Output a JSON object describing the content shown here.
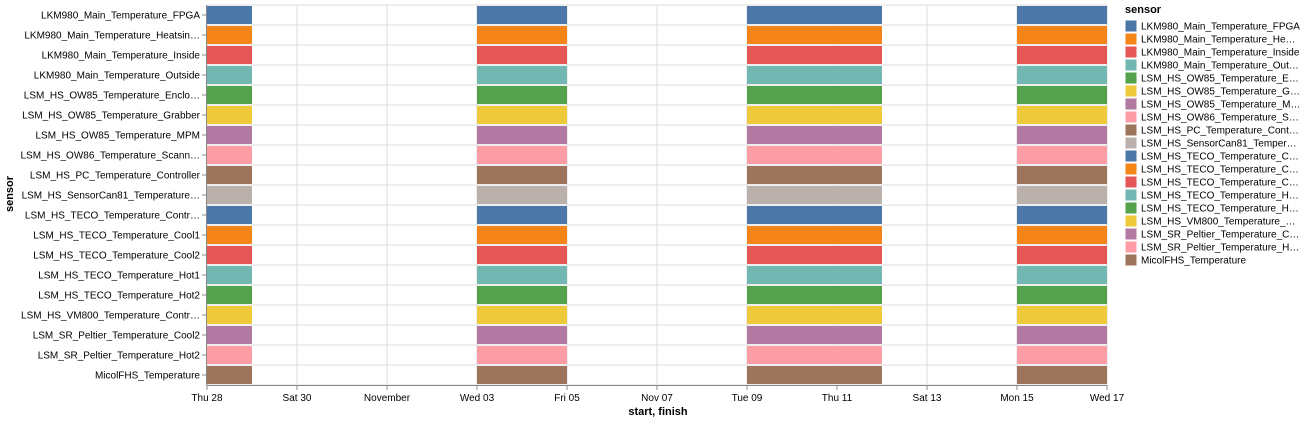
{
  "chart_data": {
    "type": "gantt",
    "x_axis_label": "start, finish",
    "y_axis_label": "sensor",
    "legend_title": "sensor",
    "x_ticks": [
      "Thu 28",
      "Sat 30",
      "November",
      "Wed 03",
      "Fri 05",
      "Nov 07",
      "Tue 09",
      "Thu 11",
      "Sat 13",
      "Mon 15",
      "Wed 17"
    ],
    "x_range_days": [
      0,
      20
    ],
    "grid": true,
    "legend_position": "right",
    "sensors": [
      {
        "label": "LKM980_Main_Temperature_FPGA",
        "legend": "LKM980_Main_Temperature_FPGA",
        "color": "#4c78a8"
      },
      {
        "label": "LKM980_Main_Temperature_Heatsin…",
        "legend": "LKM980_Main_Temperature_He…",
        "color": "#f58518"
      },
      {
        "label": "LKM980_Main_Temperature_Inside",
        "legend": "LKM980_Main_Temperature_Inside",
        "color": "#e45756"
      },
      {
        "label": "LKM980_Main_Temperature_Outside",
        "legend": "LKM980_Main_Temperature_Out…",
        "color": "#72b7b2"
      },
      {
        "label": "LSM_HS_OW85_Temperature_Enclo…",
        "legend": "LSM_HS_OW85_Temperature_E…",
        "color": "#54a24b"
      },
      {
        "label": "LSM_HS_OW85_Temperature_Grabber",
        "legend": "LSM_HS_OW85_Temperature_G…",
        "color": "#eeca3b"
      },
      {
        "label": "LSM_HS_OW85_Temperature_MPM",
        "legend": "LSM_HS_OW85_Temperature_M…",
        "color": "#b279a2"
      },
      {
        "label": "LSM_HS_OW86_Temperature_Scann…",
        "legend": "LSM_HS_OW86_Temperature_S…",
        "color": "#ff9da6"
      },
      {
        "label": "LSM_HS_PC_Temperature_Controller",
        "legend": "LSM_HS_PC_Temperature_Cont…",
        "color": "#9d755d"
      },
      {
        "label": "LSM_HS_SensorCan81_Temperature…",
        "legend": "LSM_HS_SensorCan81_Temper…",
        "color": "#bab0ac"
      },
      {
        "label": "LSM_HS_TECO_Temperature_Contr…",
        "legend": "LSM_HS_TECO_Temperature_C…",
        "color": "#4c78a8"
      },
      {
        "label": "LSM_HS_TECO_Temperature_Cool1",
        "legend": "LSM_HS_TECO_Temperature_C…",
        "color": "#f58518"
      },
      {
        "label": "LSM_HS_TECO_Temperature_Cool2",
        "legend": "LSM_HS_TECO_Temperature_C…",
        "color": "#e45756"
      },
      {
        "label": "LSM_HS_TECO_Temperature_Hot1",
        "legend": "LSM_HS_TECO_Temperature_H…",
        "color": "#72b7b2"
      },
      {
        "label": "LSM_HS_TECO_Temperature_Hot2",
        "legend": "LSM_HS_TECO_Temperature_H…",
        "color": "#54a24b"
      },
      {
        "label": "LSM_HS_VM800_Temperature_Contr…",
        "legend": "LSM_HS_VM800_Temperature_…",
        "color": "#eeca3b"
      },
      {
        "label": "LSM_SR_Peltier_Temperature_Cool2",
        "legend": "LSM_SR_Peltier_Temperature_C…",
        "color": "#b279a2"
      },
      {
        "label": "LSM_SR_Peltier_Temperature_Hot2",
        "legend": "LSM_SR_Peltier_Temperature_H…",
        "color": "#ff9da6"
      },
      {
        "label": "MicolFHS_Temperature",
        "legend": "MicolFHS_Temperature",
        "color": "#9d755d"
      }
    ],
    "intervals_days": [
      [
        0,
        1.0
      ],
      [
        6.0,
        8.0
      ],
      [
        12.0,
        15.0
      ],
      [
        18.0,
        20.0
      ]
    ]
  }
}
